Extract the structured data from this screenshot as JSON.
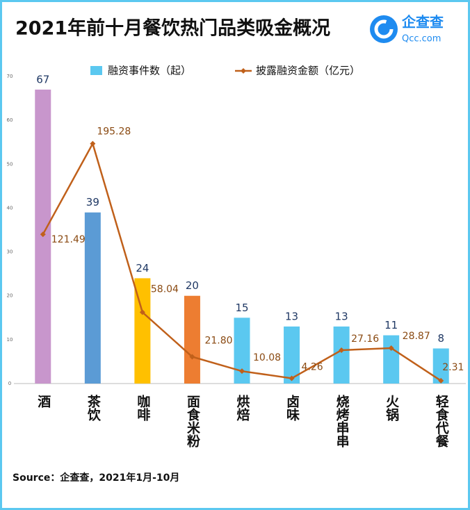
{
  "chart_data": {
    "type": "bar-line",
    "title": "2021年前十月餐饮热门品类吸金概况",
    "logo": "企查查",
    "logo_url": "Qcc.com",
    "source": "Source：企查查，2021年1月-10月",
    "categories": [
      "酒",
      "茶饮",
      "咖啡",
      "面食米粉",
      "烘焙",
      "卤味",
      "烧烤串串",
      "火锅",
      "轻食代餐"
    ],
    "series": [
      {
        "name": "融资事件数（起）",
        "type": "bar",
        "color": "#5bc8f0",
        "colors": [
          "#c896cc",
          "#5b9bd5",
          "#ffc000",
          "#ed7d31",
          "#5bc8f0",
          "#5bc8f0",
          "#5bc8f0",
          "#5bc8f0",
          "#5bc8f0"
        ],
        "values": [
          67,
          39,
          24,
          20,
          15,
          13,
          13,
          11,
          8
        ]
      },
      {
        "name": "披露融资金额（亿元）",
        "type": "line",
        "axis": "y2",
        "color": "#c0601a",
        "values": [
          121.49,
          195.28,
          58.04,
          21.8,
          10.08,
          4.26,
          27.16,
          28.87,
          2.31
        ],
        "value_labels": [
          "121.49",
          "195.28",
          "58.04",
          "21.80",
          "10.08",
          "4.26",
          "27.16",
          "28.87",
          "2.31"
        ]
      }
    ],
    "ylim": [
      0,
      70
    ],
    "yticks": [
      0,
      10,
      20,
      30,
      40,
      50,
      60,
      70
    ],
    "y2lim": [
      0,
      250
    ]
  }
}
